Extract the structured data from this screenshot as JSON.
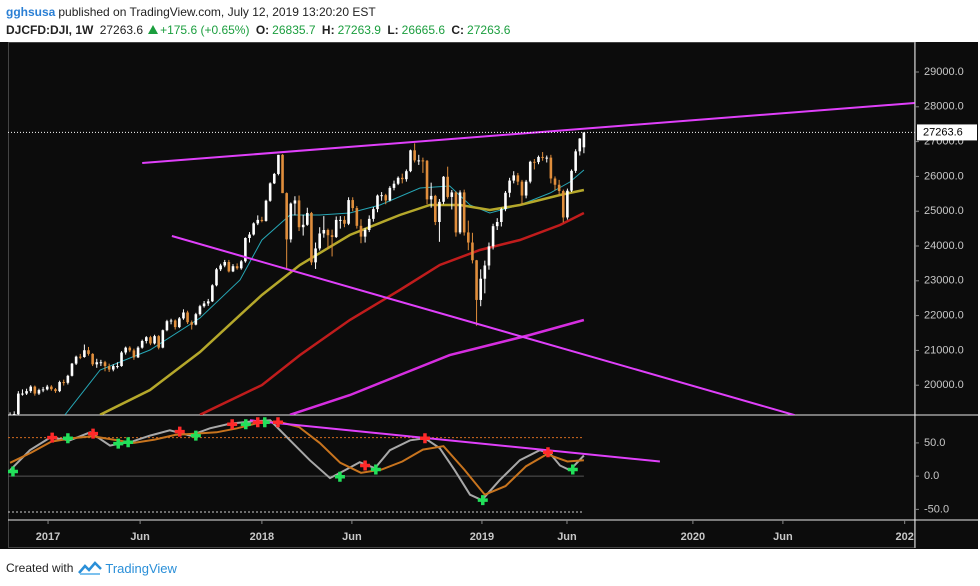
{
  "chart_data": {
    "type": "candlestick",
    "author": "gghsusa",
    "published": "published on TradingView.com, July 12, 2019 13:20:20 EST",
    "symbol": "DJCFD:DJI, 1W",
    "change": "+175.6 (+0.65%)",
    "ohlc_labels": [
      "O:",
      "H:",
      "L:",
      "C:"
    ],
    "up_color": "#ffffff",
    "down_color": "#e08e3c",
    "xlim": [
      -0.5,
      219.2
    ],
    "xticks": [
      {
        "value": 9.2,
        "label": "2017"
      },
      {
        "value": 31.5,
        "label": "Jun"
      },
      {
        "value": 61,
        "label": "2018"
      },
      {
        "value": 82.8,
        "label": "Jun"
      },
      {
        "value": 114.3,
        "label": "2019"
      },
      {
        "value": 134.9,
        "label": "Jun"
      },
      {
        "value": 165.4,
        "label": "2020"
      },
      {
        "value": 187.2,
        "label": "Jun"
      },
      {
        "value": 216.7,
        "label": "202"
      }
    ],
    "ylim": [
      19144,
      29862
    ],
    "yticks": [
      {
        "value": 20000,
        "label": "20000.0"
      },
      {
        "value": 21000,
        "label": "21000.0"
      },
      {
        "value": 22000,
        "label": "22000.0"
      },
      {
        "value": 23000,
        "label": "23000.0"
      },
      {
        "value": 24000,
        "label": "24000.0"
      },
      {
        "value": 25000,
        "label": "25000.0"
      },
      {
        "value": 26000,
        "label": "26000.0"
      },
      {
        "value": 27000,
        "label": "27000.0"
      },
      {
        "value": 28000,
        "label": "28000.0"
      },
      {
        "value": 29000,
        "label": "29000.0"
      }
    ],
    "grid": false,
    "candles": [
      [
        19000,
        19220,
        18950,
        19150
      ],
      [
        19150,
        19250,
        19100,
        19170
      ],
      [
        19170,
        19830,
        19150,
        19760
      ],
      [
        19760,
        19880,
        19700,
        19760
      ],
      [
        19760,
        19900,
        19720,
        19830
      ],
      [
        19830,
        20000,
        19780,
        19960
      ],
      [
        19960,
        19990,
        19700,
        19760
      ],
      [
        19760,
        19900,
        19720,
        19860
      ],
      [
        19860,
        19950,
        19800,
        19880
      ],
      [
        19880,
        20010,
        19850,
        19960
      ],
      [
        19960,
        20000,
        19840,
        19885
      ],
      [
        19885,
        19920,
        19780,
        19830
      ],
      [
        19830,
        20130,
        19800,
        20090
      ],
      [
        20090,
        20160,
        19990,
        20070
      ],
      [
        20070,
        20300,
        20020,
        20270
      ],
      [
        20270,
        20640,
        20250,
        20620
      ],
      [
        20620,
        20850,
        20580,
        20820
      ],
      [
        20820,
        20900,
        20750,
        20810
      ],
      [
        20810,
        21170,
        20790,
        21005
      ],
      [
        21005,
        21100,
        20850,
        20900
      ],
      [
        20900,
        20920,
        20550,
        20600
      ],
      [
        20600,
        20760,
        20500,
        20660
      ],
      [
        20660,
        20730,
        20550,
        20660
      ],
      [
        20660,
        20700,
        20400,
        20550
      ],
      [
        20550,
        20620,
        20380,
        20450
      ],
      [
        20450,
        20600,
        20400,
        20550
      ],
      [
        20550,
        20660,
        20480,
        20550
      ],
      [
        20550,
        20980,
        20530,
        20940
      ],
      [
        20940,
        21110,
        20880,
        21080
      ],
      [
        21080,
        21120,
        20950,
        21000
      ],
      [
        21000,
        21050,
        20730,
        20800
      ],
      [
        20800,
        21120,
        20780,
        21080
      ],
      [
        21080,
        21310,
        21050,
        21270
      ],
      [
        21270,
        21410,
        21200,
        21380
      ],
      [
        21380,
        21420,
        21150,
        21200
      ],
      [
        21200,
        21450,
        21170,
        21410
      ],
      [
        21410,
        21440,
        21030,
        21080
      ],
      [
        21080,
        21600,
        21060,
        21580
      ],
      [
        21580,
        21880,
        21550,
        21840
      ],
      [
        21840,
        21910,
        21750,
        21860
      ],
      [
        21860,
        21890,
        21600,
        21670
      ],
      [
        21670,
        21960,
        21640,
        21920
      ],
      [
        21920,
        22180,
        21880,
        22090
      ],
      [
        22090,
        22140,
        21760,
        21810
      ],
      [
        21810,
        21860,
        21600,
        21740
      ],
      [
        21740,
        22080,
        21720,
        22040
      ],
      [
        22040,
        22310,
        22000,
        22270
      ],
      [
        22270,
        22420,
        22230,
        22350
      ],
      [
        22350,
        22480,
        22280,
        22410
      ],
      [
        22410,
        22900,
        22390,
        22870
      ],
      [
        22870,
        23370,
        22840,
        23330
      ],
      [
        23330,
        23490,
        23280,
        23440
      ],
      [
        23440,
        23600,
        23390,
        23540
      ],
      [
        23540,
        23600,
        23240,
        23270
      ],
      [
        23270,
        23480,
        23250,
        23420
      ],
      [
        23420,
        23500,
        23320,
        23360
      ],
      [
        23360,
        23600,
        23320,
        23560
      ],
      [
        23560,
        24250,
        23520,
        24230
      ],
      [
        24230,
        24400,
        24100,
        24330
      ],
      [
        24330,
        24680,
        24300,
        24650
      ],
      [
        24650,
        24880,
        24600,
        24750
      ],
      [
        24750,
        24840,
        24680,
        24720
      ],
      [
        24720,
        25330,
        24700,
        25300
      ],
      [
        25300,
        25830,
        25270,
        25800
      ],
      [
        25800,
        26100,
        25780,
        26070
      ],
      [
        26070,
        26620,
        26030,
        26620
      ],
      [
        26620,
        26640,
        25520,
        25520
      ],
      [
        25520,
        25540,
        23360,
        24190
      ],
      [
        24190,
        25250,
        24100,
        25220
      ],
      [
        25220,
        25430,
        24880,
        25310
      ],
      [
        25310,
        25450,
        24430,
        24540
      ],
      [
        24540,
        24900,
        24300,
        24610
      ],
      [
        24610,
        25100,
        24580,
        24950
      ],
      [
        24950,
        24980,
        23450,
        23530
      ],
      [
        23530,
        24100,
        23340,
        23930
      ],
      [
        23930,
        24540,
        23870,
        24360
      ],
      [
        24360,
        24860,
        24240,
        24460
      ],
      [
        24460,
        24500,
        23920,
        24310
      ],
      [
        24310,
        24470,
        23700,
        24260
      ],
      [
        24260,
        24850,
        24230,
        24750
      ],
      [
        24750,
        24860,
        24500,
        24750
      ],
      [
        24750,
        24860,
        24540,
        24640
      ],
      [
        24640,
        25400,
        24600,
        25320
      ],
      [
        25320,
        25400,
        25000,
        25090
      ],
      [
        25090,
        25150,
        24500,
        24580
      ],
      [
        24580,
        24770,
        24080,
        24270
      ],
      [
        24270,
        24520,
        24100,
        24460
      ],
      [
        24460,
        24880,
        24400,
        24780
      ],
      [
        24780,
        25120,
        24700,
        25060
      ],
      [
        25060,
        25480,
        24970,
        25450
      ],
      [
        25450,
        25550,
        25300,
        25460
      ],
      [
        25460,
        25500,
        25200,
        25310
      ],
      [
        25310,
        25720,
        25280,
        25670
      ],
      [
        25670,
        25880,
        25600,
        25790
      ],
      [
        25790,
        26000,
        25750,
        25960
      ],
      [
        25960,
        26080,
        25800,
        25920
      ],
      [
        25920,
        26200,
        25850,
        26150
      ],
      [
        26150,
        26770,
        26120,
        26750
      ],
      [
        26750,
        26950,
        26400,
        26460
      ],
      [
        26460,
        26620,
        26330,
        26460
      ],
      [
        26460,
        26540,
        26100,
        26450
      ],
      [
        26450,
        26470,
        25200,
        25340
      ],
      [
        25340,
        25820,
        25100,
        25440
      ],
      [
        25440,
        25470,
        24600,
        24690
      ],
      [
        24690,
        25350,
        24120,
        25270
      ],
      [
        25270,
        26010,
        25200,
        25990
      ],
      [
        25990,
        26280,
        25360,
        25410
      ],
      [
        25410,
        25610,
        25050,
        25540
      ],
      [
        25540,
        25570,
        24270,
        24390
      ],
      [
        24390,
        25600,
        24340,
        25540
      ],
      [
        25540,
        25620,
        24300,
        24390
      ],
      [
        24390,
        24730,
        23880,
        24100
      ],
      [
        24100,
        24380,
        23500,
        23590
      ],
      [
        23590,
        23600,
        21710,
        22450
      ],
      [
        22450,
        23330,
        22270,
        23060
      ],
      [
        23060,
        23580,
        22640,
        23440
      ],
      [
        23440,
        24100,
        23320,
        23990
      ],
      [
        23990,
        24640,
        23900,
        24570
      ],
      [
        24570,
        24800,
        24460,
        24690
      ],
      [
        24690,
        25100,
        24560,
        25060
      ],
      [
        25060,
        25580,
        25000,
        25530
      ],
      [
        25530,
        25960,
        25400,
        25880
      ],
      [
        25880,
        26150,
        25800,
        26030
      ],
      [
        26030,
        26100,
        25750,
        25850
      ],
      [
        25850,
        25900,
        25200,
        25450
      ],
      [
        25450,
        25900,
        25370,
        25850
      ],
      [
        25850,
        26450,
        25800,
        26420
      ],
      [
        26420,
        26500,
        26200,
        26410
      ],
      [
        26410,
        26600,
        26350,
        26560
      ],
      [
        26560,
        26700,
        26450,
        26540
      ],
      [
        26540,
        26600,
        26400,
        26540
      ],
      [
        26540,
        26620,
        25800,
        25940
      ],
      [
        25940,
        26000,
        25600,
        25760
      ],
      [
        25760,
        25900,
        25450,
        25580
      ],
      [
        25580,
        25620,
        24680,
        24820
      ],
      [
        24820,
        25650,
        24760,
        25590
      ],
      [
        25590,
        26200,
        25550,
        26160
      ],
      [
        26160,
        26780,
        26100,
        26720
      ],
      [
        26720,
        27100,
        26600,
        27088
      ],
      [
        26835.7,
        27263.9,
        26665.6,
        27263.6
      ]
    ],
    "series": [
      {
        "color": "#26a6b5",
        "x": [
          13.3,
          21.8,
          33.9,
          46,
          55.7,
          61,
          67.8,
          75,
          82.3,
          89.6,
          99.3,
          106.5,
          111.4,
          116.2,
          123.5,
          130.8,
          135.6,
          139
        ],
        "values": [
          19150,
          20436,
          21011,
          21931,
          23023,
          24172,
          24890,
          24890,
          24948,
          25178,
          25666,
          25724,
          25178,
          24948,
          25178,
          25523,
          25839,
          26184
        ]
      },
      {
        "color": "#b5a82b",
        "x": [
          21.8,
          33.9,
          46,
          55.7,
          61,
          70.2,
          82.3,
          94.4,
          101.7,
          109,
          116.2,
          123.5,
          133.2,
          139
        ],
        "values": [
          19150,
          19861,
          20953,
          22016,
          22591,
          23454,
          24316,
          24890,
          25178,
          25178,
          25034,
          25178,
          25465,
          25609
        ]
      },
      {
        "color": "#c01c1c",
        "x": [
          46,
          61,
          70.2,
          82.3,
          94.4,
          104.1,
          113.8,
          123.5,
          133.2,
          139
        ],
        "values": [
          19150,
          20004,
          20866,
          21873,
          22735,
          23454,
          23884,
          24172,
          24603,
          24948
        ]
      },
      {
        "color": "#d62ee0",
        "x": [
          67.8,
          82.3,
          94.4,
          106.5,
          116.2,
          125.9,
          139
        ],
        "values": [
          19150,
          19717,
          20292,
          20866,
          21154,
          21442,
          21873
        ]
      }
    ],
    "trend_lines": [
      {
        "color": "#e040fb",
        "x": [
          32,
          219.1
        ],
        "values": [
          26385,
          28109
        ]
      },
      {
        "color": "#e040fb",
        "x": [
          39.2,
          190
        ],
        "values": [
          24287,
          19142
        ]
      }
    ],
    "oscillator": {
      "ylim": [
        -66,
        92
      ],
      "yticks": [
        {
          "value": 50,
          "label": "50.0"
        },
        {
          "value": 0,
          "label": "0.0"
        },
        {
          "value": -50,
          "label": "-50.0"
        }
      ],
      "levels": [
        {
          "value": 58,
          "color": "#d2691e",
          "dash": true
        },
        {
          "value": 0,
          "color": "#555555",
          "dash": false
        },
        {
          "value": -54,
          "color": "#cccccc",
          "dash": true
        }
      ],
      "series": [
        {
          "color": "#a8a8a8",
          "x": [
            0,
            4.8,
            9.7,
            14.5,
            19.4,
            24.2,
            26.6,
            29.1,
            33.9,
            38.7,
            43.6,
            48.4,
            53.3,
            58.1,
            63,
            67.8,
            72.6,
            77.5,
            81.1,
            84.7,
            88.4,
            92,
            96.9,
            100.5,
            104.1,
            107.7,
            111.4,
            114.3,
            118.6,
            123.5,
            128.3,
            130.8,
            133.2,
            135.6,
            139
          ],
          "values": [
            9,
            39,
            58,
            54,
            66,
            46,
            49,
            51,
            61,
            69,
            61,
            72,
            79,
            82,
            84,
            54,
            24,
            -3,
            9,
            21,
            12,
            39,
            54,
            57,
            42,
            9,
            -28,
            -36,
            -6,
            24,
            39,
            34,
            16,
            9,
            31
          ]
        },
        {
          "color": "#c8741e",
          "x": [
            0,
            5,
            10,
            15,
            20,
            25,
            30,
            35,
            40,
            45,
            50,
            55,
            60,
            65,
            70,
            75,
            80,
            85,
            90,
            95,
            100,
            105,
            110,
            115,
            120,
            125,
            130,
            135,
            139
          ],
          "values": [
            20,
            35,
            52,
            57,
            60,
            55,
            50,
            55,
            62,
            64,
            66,
            72,
            80,
            82,
            74,
            50,
            20,
            5,
            10,
            22,
            40,
            45,
            10,
            -28,
            -15,
            15,
            33,
            22,
            24
          ]
        }
      ],
      "markers": [
        {
          "color": "#22e05a",
          "x": [
            0.7,
            14,
            26.2,
            28.6,
            45,
            57.1,
            61.7,
            79.9,
            88.6,
            114.5,
            136.3
          ],
          "values": [
            7,
            57,
            49,
            51,
            61,
            78,
            81,
            -1,
            10,
            -36,
            10
          ]
        },
        {
          "color": "#ff2a2a",
          "x": [
            10.2,
            20.1,
            41.1,
            53.8,
            60,
            64.9,
            86,
            100.5,
            130.3
          ],
          "values": [
            58,
            64,
            67,
            78,
            81,
            81,
            16,
            57,
            36
          ]
        }
      ],
      "trend_line": {
        "color": "#e040fb",
        "x": [
          58.1,
          157.4
        ],
        "values": [
          84,
          22
        ]
      }
    }
  },
  "footer": {
    "prefix": "Created with",
    "brand": "TradingView"
  }
}
